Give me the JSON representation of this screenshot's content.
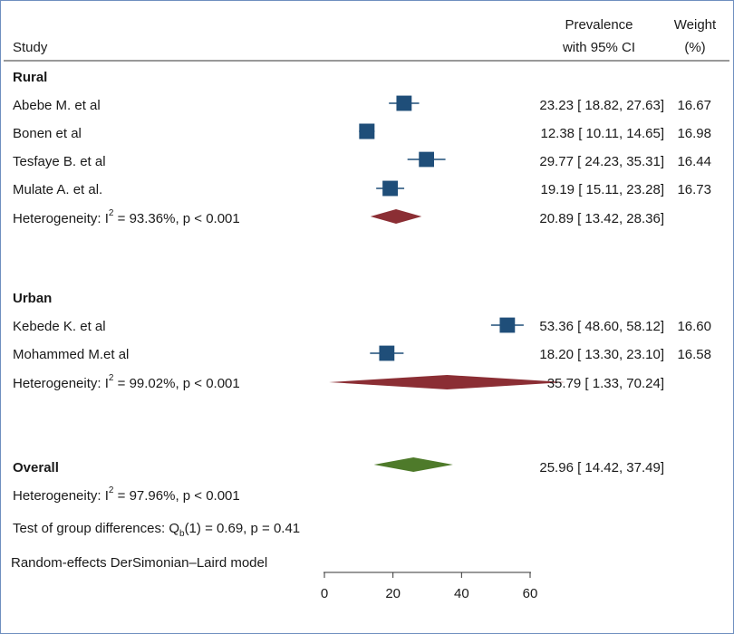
{
  "chart_data": {
    "type": "forest",
    "header": {
      "study_label": "Study",
      "estimate_label_line1": "Prevalence",
      "estimate_label_line2": "with 95% CI",
      "weight_label_line1": "Weight",
      "weight_label_line2": "(%)"
    },
    "groups": [
      {
        "name": "Rural",
        "studies": [
          {
            "name": "Abebe M. et al",
            "estimate": 23.23,
            "lower": 18.82,
            "upper": 27.63,
            "weight": 16.67,
            "ci_text": "23.23 [ 18.82,  27.63]",
            "weight_text": "16.67"
          },
          {
            "name": "Bonen et al",
            "estimate": 12.38,
            "lower": 10.11,
            "upper": 14.65,
            "weight": 16.98,
            "ci_text": "12.38 [ 10.11,  14.65]",
            "weight_text": "16.98"
          },
          {
            "name": "Tesfaye B. et al",
            "estimate": 29.77,
            "lower": 24.23,
            "upper": 35.31,
            "weight": 16.44,
            "ci_text": "29.77 [ 24.23,  35.31]",
            "weight_text": "16.44"
          },
          {
            "name": "Mulate A. et al.",
            "estimate": 19.19,
            "lower": 15.11,
            "upper": 23.28,
            "weight": 16.73,
            "ci_text": "19.19 [ 15.11,  23.28]",
            "weight_text": "16.73"
          }
        ],
        "pooled": {
          "estimate": 20.89,
          "lower": 13.42,
          "upper": 28.36,
          "ci_text": "20.89 [ 13.42,  28.36]"
        },
        "heterogeneity": {
          "prefix": "Heterogeneity:  I",
          "sup": "2",
          "suffix": " = 93.36%, p < 0.001"
        }
      },
      {
        "name": "Urban",
        "studies": [
          {
            "name": "Kebede K. et al",
            "estimate": 53.36,
            "lower": 48.6,
            "upper": 58.12,
            "weight": 16.6,
            "ci_text": "53.36 [ 48.60,  58.12]",
            "weight_text": "16.60"
          },
          {
            "name": "Mohammed M.et al",
            "estimate": 18.2,
            "lower": 13.3,
            "upper": 23.1,
            "weight": 16.58,
            "ci_text": "18.20 [ 13.30,  23.10]",
            "weight_text": "16.58"
          }
        ],
        "pooled": {
          "estimate": 35.79,
          "lower": 1.33,
          "upper": 70.24,
          "ci_text": "35.79 [   1.33,  70.24]"
        },
        "heterogeneity": {
          "prefix": "Heterogeneity:  I",
          "sup": "2",
          "suffix": " = 99.02%, p < 0.001"
        }
      }
    ],
    "overall": {
      "label": "Overall",
      "estimate": 25.96,
      "lower": 14.42,
      "upper": 37.49,
      "ci_text": "25.96 [ 14.42,  37.49]",
      "heterogeneity": {
        "prefix": "Heterogeneity:  I",
        "sup": "2",
        "suffix": " = 97.96%, p < 0.001"
      }
    },
    "group_test": {
      "prefix": "Test of group differences:  Q",
      "sub": "b",
      "suffix": "(1) = 0.69, p = 0.41"
    },
    "model_note": "Random-effects DerSimonian–Laird model",
    "x_axis": {
      "min": 0,
      "max": 60,
      "ticks": [
        0,
        20,
        40,
        60
      ],
      "tick_labels": [
        "0",
        "20",
        "40",
        "60"
      ]
    },
    "colors": {
      "study_marker": "#1f4e79",
      "subgroup_diamond": "#8b2e34",
      "overall_diamond": "#4e7a2a",
      "text": "#1a1a1a"
    }
  }
}
